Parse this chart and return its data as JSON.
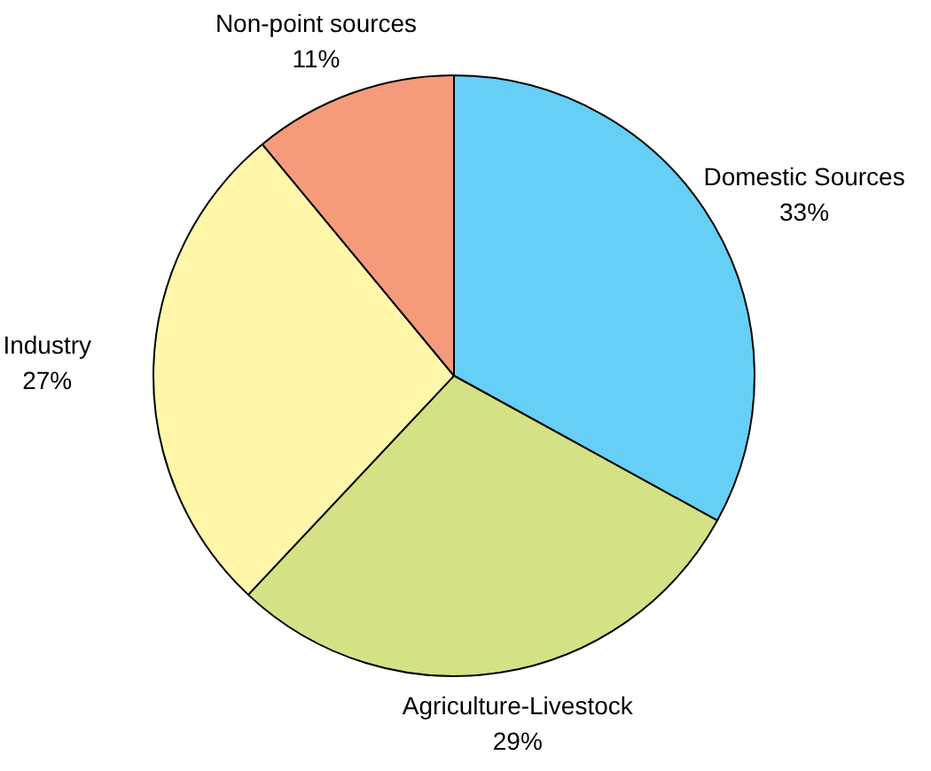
{
  "chart_data": {
    "type": "pie",
    "categories": [
      "Domestic Sources",
      "Agriculture-Livestock",
      "Industry",
      "Non-point sources"
    ],
    "values": [
      33,
      29,
      27,
      11
    ],
    "value_labels": [
      "33%",
      "29%",
      "27%",
      "11%"
    ],
    "colors": [
      "#66cff5",
      "#d4e285",
      "#fff6aa",
      "#f59b7b"
    ],
    "legend": false
  }
}
